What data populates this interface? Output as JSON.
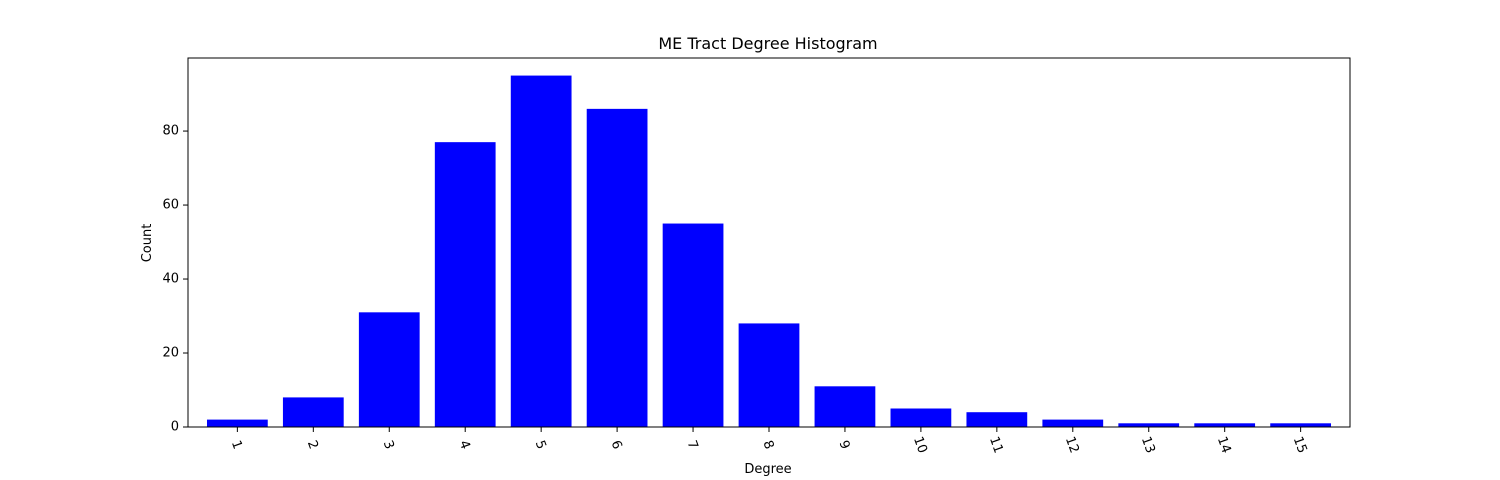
{
  "chart_data": {
    "type": "bar",
    "title": "ME Tract Degree Histogram",
    "xlabel": "Degree",
    "ylabel": "Count",
    "categories": [
      "1",
      "2",
      "3",
      "4",
      "5",
      "6",
      "7",
      "8",
      "9",
      "10",
      "11",
      "12",
      "13",
      "14",
      "15"
    ],
    "values": [
      2,
      8,
      31,
      77,
      95,
      86,
      55,
      28,
      11,
      5,
      4,
      2,
      1,
      1,
      1
    ],
    "ylim": [
      0,
      99.75
    ],
    "yticks": [
      0,
      20,
      40,
      60,
      80
    ],
    "ytick_labels": [
      "0",
      "20",
      "40",
      "60",
      "80"
    ],
    "xtick_rotation_deg": 70,
    "grid": false,
    "legend": "none",
    "bar_color": "#0000ff"
  }
}
